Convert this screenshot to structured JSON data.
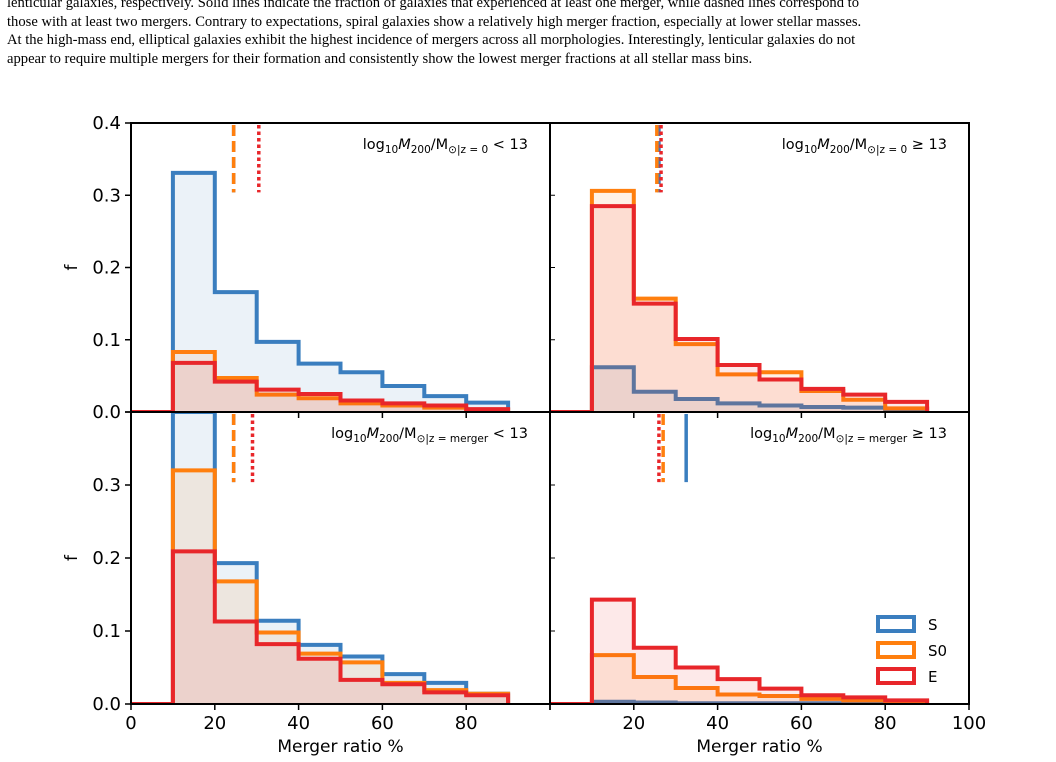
{
  "caption_lines": [
    "lenticular galaxies, respectively. Solid lines indicate the fraction of galaxies that experienced at least one merger, while dashed lines correspond to",
    "those with at least two mergers. Contrary to expectations, spiral galaxies show a relatively high merger fraction, especially at lower stellar masses.",
    "At the high-mass end, elliptical galaxies exhibit the highest incidence of mergers across all morphologies. Interestingly, lenticular galaxies do not",
    "appear to require multiple mergers for their formation and consistently show the lowest merger fractions at all stellar mass bins."
  ],
  "colors": {
    "S": "#3a7ebf",
    "S0": "#ff7f0e",
    "E": "#e8262a"
  },
  "chart_data": {
    "type": "histogram-step",
    "xlabel": "Merger ratio %",
    "ylabel": "f",
    "xlim": [
      0,
      100
    ],
    "ylim": [
      0,
      0.4
    ],
    "x_ticks": [
      "0",
      "20",
      "40",
      "60",
      "80",
      "100"
    ],
    "y_ticks": [
      "0.0",
      "0.1",
      "0.2",
      "0.3",
      "0.4"
    ],
    "bin_edges": [
      0,
      10,
      20,
      30,
      40,
      50,
      60,
      70,
      80,
      90
    ],
    "legend": {
      "position": "lower-right",
      "entries": [
        "S",
        "S0",
        "E"
      ]
    },
    "panels": [
      {
        "id": "top-left",
        "label_main": "log",
        "label_sub1": "10",
        "label_M": "M",
        "label_sub2": "200",
        "label_slash": "/M",
        "label_sub3": "⊙|z = 0",
        "label_rel": " < 13",
        "series": [
          {
            "name": "S",
            "values": [
              0,
              0.331,
              0.166,
              0.097,
              0.067,
              0.055,
              0.036,
              0.022,
              0.013
            ]
          },
          {
            "name": "S0",
            "values": [
              0,
              0.083,
              0.047,
              0.024,
              0.019,
              0.012,
              0.009,
              0.006,
              0.003
            ]
          },
          {
            "name": "E",
            "values": [
              0,
              0.068,
              0.042,
              0.031,
              0.025,
              0.016,
              0.012,
              0.009,
              0.004
            ]
          }
        ],
        "vlines": [
          {
            "name": "S",
            "x": 24.5,
            "style": "dashed"
          },
          {
            "name": "S0",
            "x": 24.5,
            "style": "dashed"
          },
          {
            "name": "E",
            "x": 30.5,
            "style": "dotted"
          }
        ]
      },
      {
        "id": "top-right",
        "label_main": "log",
        "label_sub1": "10",
        "label_M": "M",
        "label_sub2": "200",
        "label_slash": "/M",
        "label_sub3": "⊙|z = 0",
        "label_rel": " ≥ 13",
        "series": [
          {
            "name": "S",
            "values": [
              0,
              0.062,
              0.028,
              0.018,
              0.012,
              0.009,
              0.007,
              0.006,
              0.004
            ]
          },
          {
            "name": "S0",
            "values": [
              0,
              0.306,
              0.157,
              0.094,
              0.052,
              0.055,
              0.029,
              0.017,
              0.005
            ]
          },
          {
            "name": "E",
            "values": [
              0,
              0.285,
              0.15,
              0.101,
              0.065,
              0.045,
              0.032,
              0.024,
              0.014
            ]
          }
        ],
        "vlines": [
          {
            "name": "S",
            "x": 26.0,
            "style": "dashed"
          },
          {
            "name": "S0",
            "x": 25.5,
            "style": "dashed"
          },
          {
            "name": "E",
            "x": 26.5,
            "style": "dotted"
          }
        ]
      },
      {
        "id": "bottom-left",
        "label_main": "log",
        "label_sub1": "10",
        "label_M": "M",
        "label_sub2": "200",
        "label_slash": "/M",
        "label_sub3": "⊙|z = merger",
        "label_rel": " < 13",
        "series": [
          {
            "name": "S",
            "values": [
              0,
              0.4,
              0.193,
              0.114,
              0.081,
              0.065,
              0.041,
              0.029,
              0.014
            ]
          },
          {
            "name": "S0",
            "values": [
              0,
              0.32,
              0.168,
              0.098,
              0.069,
              0.057,
              0.029,
              0.019,
              0.014
            ]
          },
          {
            "name": "E",
            "values": [
              0,
              0.209,
              0.113,
              0.082,
              0.062,
              0.033,
              0.027,
              0.016,
              0.012
            ]
          }
        ],
        "vlines": [
          {
            "name": "S",
            "x": 24.5,
            "style": "dashed"
          },
          {
            "name": "S0",
            "x": 24.5,
            "style": "dashed"
          },
          {
            "name": "E",
            "x": 29.0,
            "style": "dotted"
          }
        ]
      },
      {
        "id": "bottom-right",
        "label_main": "log",
        "label_sub1": "10",
        "label_M": "M",
        "label_sub2": "200",
        "label_slash": "/M",
        "label_sub3": "⊙|z = merger",
        "label_rel": " ≥ 13",
        "series": [
          {
            "name": "S",
            "values": [
              0,
              0.003,
              0.002,
              0.001,
              0.001,
              0.001,
              0.001,
              0.0,
              0.0
            ]
          },
          {
            "name": "S0",
            "values": [
              0,
              0.067,
              0.037,
              0.022,
              0.013,
              0.011,
              0.007,
              0.005,
              0.003
            ]
          },
          {
            "name": "E",
            "values": [
              0,
              0.143,
              0.077,
              0.05,
              0.034,
              0.021,
              0.012,
              0.009,
              0.005
            ]
          }
        ],
        "vlines": [
          {
            "name": "S",
            "x": 32.5,
            "style": "solid"
          },
          {
            "name": "S0",
            "x": 27.0,
            "style": "dashed"
          },
          {
            "name": "E",
            "x": 26.0,
            "style": "dotted"
          }
        ]
      }
    ]
  }
}
